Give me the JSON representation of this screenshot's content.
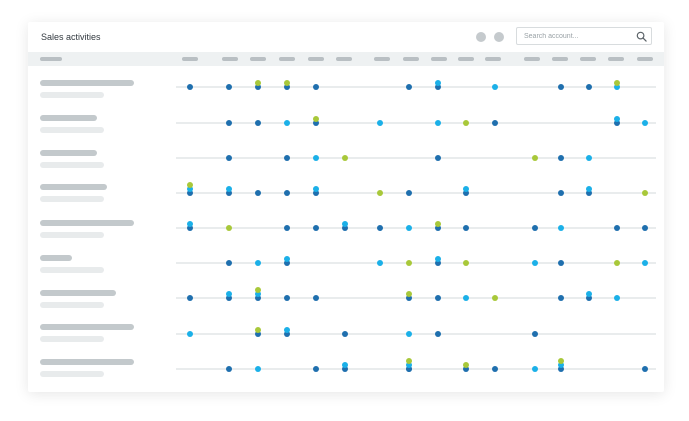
{
  "header": {
    "title": "Sales activities",
    "search_placeholder": "Search account..."
  },
  "icons": {
    "search": "search-icon",
    "status_dots": [
      "gray-dot",
      "gray-dot"
    ]
  },
  "colors": {
    "dark_blue": "#1f6fae",
    "cyan": "#1bb0e8",
    "lime": "#a8c83a",
    "line": "#d3d8db"
  },
  "rows": [
    {
      "dots": [
        [
          0,
          [
            "d"
          ]
        ],
        [
          2,
          [
            "d"
          ]
        ],
        [
          3,
          [
            "d",
            "g"
          ]
        ],
        [
          4,
          [
            "d",
            "g"
          ]
        ],
        [
          5,
          [
            "d"
          ]
        ],
        [
          10,
          [
            "d"
          ]
        ],
        [
          11,
          [
            "d",
            "c"
          ]
        ],
        [
          13,
          [
            "c"
          ]
        ],
        [
          16,
          [
            "d"
          ]
        ],
        [
          17,
          [
            "d"
          ]
        ],
        [
          18,
          [
            "c",
            "g"
          ]
        ]
      ]
    },
    {
      "dots": [
        [
          2,
          [
            "d"
          ]
        ],
        [
          3,
          [
            "d"
          ]
        ],
        [
          4,
          [
            "c"
          ]
        ],
        [
          5,
          [
            "d",
            "g"
          ]
        ],
        [
          7,
          [
            "c"
          ]
        ],
        [
          11,
          [
            "c"
          ]
        ],
        [
          12,
          [
            "g"
          ]
        ],
        [
          13,
          [
            "d"
          ]
        ],
        [
          18,
          [
            "d",
            "c"
          ]
        ],
        [
          19,
          [
            "c"
          ]
        ]
      ]
    },
    {
      "dots": [
        [
          2,
          [
            "d"
          ]
        ],
        [
          4,
          [
            "d"
          ]
        ],
        [
          5,
          [
            "c"
          ]
        ],
        [
          6,
          [
            "g"
          ]
        ],
        [
          11,
          [
            "d"
          ]
        ],
        [
          15,
          [
            "g"
          ]
        ],
        [
          16,
          [
            "d"
          ]
        ],
        [
          17,
          [
            "c"
          ]
        ]
      ]
    },
    {
      "dots": [
        [
          0,
          [
            "d",
            "c",
            "g"
          ]
        ],
        [
          2,
          [
            "d",
            "c"
          ]
        ],
        [
          3,
          [
            "d"
          ]
        ],
        [
          4,
          [
            "d"
          ]
        ],
        [
          5,
          [
            "d",
            "c"
          ]
        ],
        [
          7,
          [
            "g"
          ]
        ],
        [
          9,
          [
            "d"
          ]
        ],
        [
          12,
          [
            "d",
            "c"
          ]
        ],
        [
          16,
          [
            "d"
          ]
        ],
        [
          17,
          [
            "d",
            "c"
          ]
        ],
        [
          19,
          [
            "g"
          ]
        ]
      ]
    },
    {
      "dots": [
        [
          0,
          [
            "d",
            "c"
          ]
        ],
        [
          2,
          [
            "g"
          ]
        ],
        [
          4,
          [
            "d"
          ]
        ],
        [
          5,
          [
            "d"
          ]
        ],
        [
          6,
          [
            "d",
            "c"
          ]
        ],
        [
          7,
          [
            "d"
          ]
        ],
        [
          9,
          [
            "c"
          ]
        ],
        [
          11,
          [
            "d",
            "g"
          ]
        ],
        [
          12,
          [
            "d"
          ]
        ],
        [
          15,
          [
            "d"
          ]
        ],
        [
          16,
          [
            "c"
          ]
        ],
        [
          18,
          [
            "d"
          ]
        ],
        [
          19,
          [
            "d"
          ]
        ]
      ]
    },
    {
      "dots": [
        [
          2,
          [
            "d"
          ]
        ],
        [
          3,
          [
            "c"
          ]
        ],
        [
          4,
          [
            "d",
            "c"
          ]
        ],
        [
          7,
          [
            "c"
          ]
        ],
        [
          9,
          [
            "g"
          ]
        ],
        [
          11,
          [
            "d",
            "c"
          ]
        ],
        [
          12,
          [
            "g"
          ]
        ],
        [
          15,
          [
            "c"
          ]
        ],
        [
          16,
          [
            "d"
          ]
        ],
        [
          18,
          [
            "g"
          ]
        ],
        [
          19,
          [
            "c"
          ]
        ]
      ]
    },
    {
      "dots": [
        [
          0,
          [
            "d"
          ]
        ],
        [
          2,
          [
            "d",
            "c"
          ]
        ],
        [
          3,
          [
            "d",
            "c",
            "g"
          ]
        ],
        [
          4,
          [
            "d"
          ]
        ],
        [
          5,
          [
            "d"
          ]
        ],
        [
          9,
          [
            "d",
            "g"
          ]
        ],
        [
          11,
          [
            "d"
          ]
        ],
        [
          12,
          [
            "c"
          ]
        ],
        [
          13,
          [
            "g"
          ]
        ],
        [
          16,
          [
            "d"
          ]
        ],
        [
          17,
          [
            "d",
            "c"
          ]
        ],
        [
          18,
          [
            "c"
          ]
        ]
      ]
    },
    {
      "dots": [
        [
          0,
          [
            "c"
          ]
        ],
        [
          3,
          [
            "d",
            "g"
          ]
        ],
        [
          4,
          [
            "d",
            "c"
          ]
        ],
        [
          6,
          [
            "d"
          ]
        ],
        [
          9,
          [
            "c"
          ]
        ],
        [
          11,
          [
            "d"
          ]
        ],
        [
          15,
          [
            "d"
          ]
        ]
      ]
    },
    {
      "dots": [
        [
          2,
          [
            "d"
          ]
        ],
        [
          3,
          [
            "c"
          ]
        ],
        [
          5,
          [
            "d"
          ]
        ],
        [
          6,
          [
            "d",
            "c"
          ]
        ],
        [
          8,
          [
            "d"
          ]
        ],
        [
          9,
          [
            "d",
            "c",
            "g"
          ]
        ],
        [
          12,
          [
            "d",
            "g"
          ]
        ],
        [
          13,
          [
            "d"
          ]
        ],
        [
          15,
          [
            "c"
          ]
        ],
        [
          16,
          [
            "d",
            "c",
            "g"
          ]
        ],
        [
          19,
          [
            "d"
          ]
        ]
      ]
    }
  ]
}
